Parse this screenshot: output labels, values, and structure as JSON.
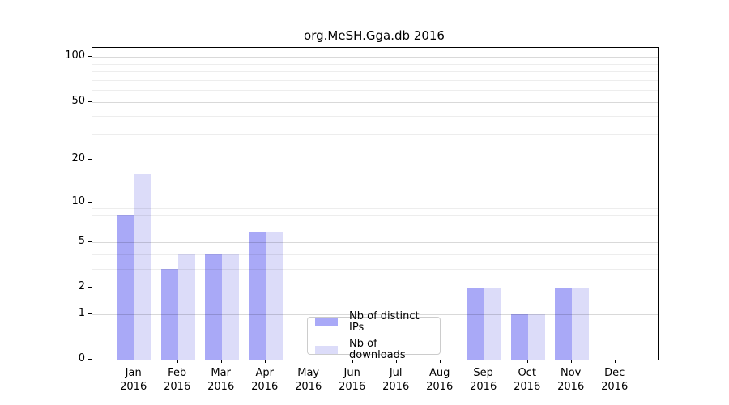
{
  "title": "org.MeSH.Gga.db 2016",
  "colors": {
    "bar_distinct_ips": "#a9a9f7",
    "bar_downloads": "#dcdcf9",
    "grid_major": "rgba(0,0,0,0.15)",
    "grid_minor": "rgba(0,0,0,0.07)",
    "axis": "#000000",
    "legend_border": "#cccccc",
    "background": "#ffffff"
  },
  "legend": {
    "items": [
      {
        "label": "Nb of distinct IPs",
        "color": "#a9a9f7"
      },
      {
        "label": "Nb of downloads",
        "color": "#dcdcf9"
      }
    ]
  },
  "chart_data": {
    "type": "bar",
    "title": "org.MeSH.Gga.db 2016",
    "categories": [
      "Jan",
      "Feb",
      "Mar",
      "Apr",
      "May",
      "Jun",
      "Jul",
      "Aug",
      "Sep",
      "Oct",
      "Nov",
      "Dec"
    ],
    "category_year": "2016",
    "series": [
      {
        "name": "Nb of distinct IPs",
        "color": "#a9a9f7",
        "values": [
          8,
          3,
          4,
          6,
          0,
          0,
          0,
          0,
          2,
          1,
          2,
          0
        ]
      },
      {
        "name": "Nb of downloads",
        "color": "#dcdcf9",
        "values": [
          16,
          4,
          4,
          6,
          0,
          0,
          0,
          0,
          2,
          1,
          2,
          0
        ]
      }
    ],
    "y_scale": "log1p",
    "y_major_ticks": [
      0,
      1,
      2,
      5,
      10,
      20,
      50,
      100
    ],
    "y_minor_ticks": [
      3,
      4,
      6,
      7,
      8,
      9,
      30,
      40,
      60,
      70,
      80,
      90
    ],
    "ylim": [
      0,
      115
    ],
    "xlabel": "",
    "ylabel": "",
    "grid": "on",
    "legend_position": "lower center"
  }
}
